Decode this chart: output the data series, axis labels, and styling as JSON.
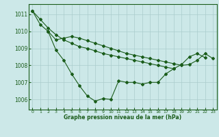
{
  "title": "Graphe pression niveau de la mer (hPa)",
  "background_color": "#cce8e8",
  "line_color": "#1a5c1a",
  "grid_color": "#aacccc",
  "xlim": [
    -0.5,
    23.5
  ],
  "ylim": [
    1005.4,
    1011.6
  ],
  "yticks": [
    1006,
    1007,
    1008,
    1009,
    1010,
    1011
  ],
  "xticks": [
    0,
    1,
    2,
    3,
    4,
    5,
    6,
    7,
    8,
    9,
    10,
    11,
    12,
    13,
    14,
    15,
    16,
    17,
    18,
    19,
    20,
    21,
    22,
    23
  ],
  "series1_x": [
    0,
    1,
    2,
    3,
    4,
    5,
    6,
    7,
    8,
    9,
    10,
    11,
    12,
    13,
    14,
    15,
    16,
    17,
    18,
    19,
    20,
    21,
    22
  ],
  "series1_y": [
    1011.2,
    1010.4,
    1010.0,
    1008.9,
    1008.3,
    1007.5,
    1006.8,
    1006.2,
    1005.9,
    1006.05,
    1006.0,
    1007.1,
    1007.0,
    1007.0,
    1006.9,
    1007.0,
    1007.0,
    1007.5,
    1007.8,
    1008.05,
    1008.5,
    1008.7,
    1008.45
  ],
  "series2_x": [
    2,
    3,
    4,
    5,
    6,
    7,
    8,
    9,
    10,
    11,
    12,
    13,
    14,
    15,
    16,
    17,
    18,
    19,
    20,
    21,
    22,
    23
  ],
  "series2_y": [
    1010.0,
    1009.5,
    1009.6,
    1009.7,
    1009.6,
    1009.45,
    1009.3,
    1009.15,
    1009.0,
    1008.85,
    1008.7,
    1008.6,
    1008.5,
    1008.4,
    1008.3,
    1008.2,
    1008.1,
    1008.0,
    1008.05,
    1008.3,
    1008.7,
    1008.4
  ],
  "series3_x": [
    0,
    1,
    2,
    3,
    4,
    5,
    6,
    7,
    8,
    9,
    10,
    11,
    12,
    13,
    14,
    15,
    16,
    17,
    18
  ],
  "series3_y": [
    1011.2,
    1010.7,
    1010.2,
    1009.8,
    1009.5,
    1009.3,
    1009.1,
    1009.0,
    1008.85,
    1008.7,
    1008.6,
    1008.5,
    1008.4,
    1008.3,
    1008.2,
    1008.1,
    1008.0,
    1007.9,
    1007.8
  ]
}
